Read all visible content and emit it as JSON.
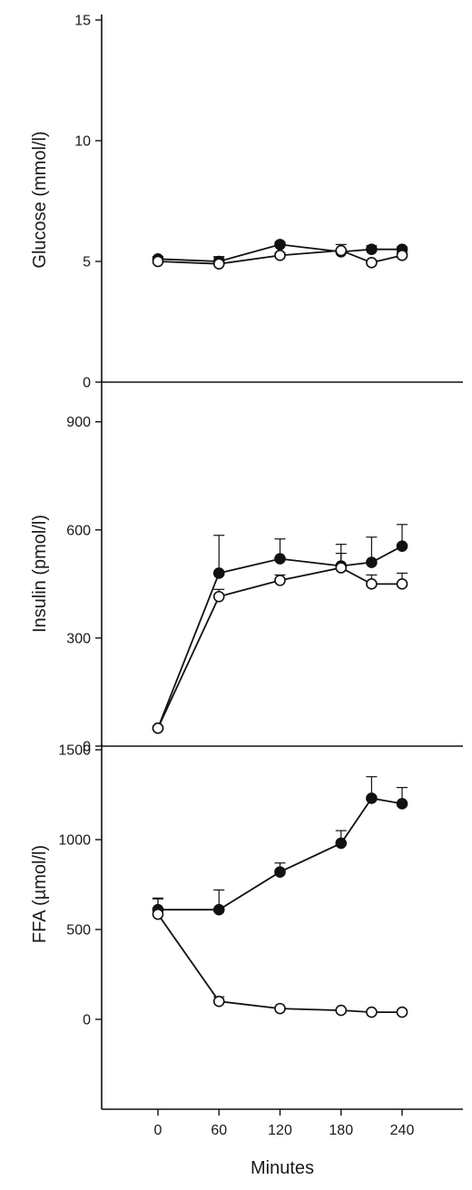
{
  "chart_data": [
    {
      "type": "line",
      "ylabel": "Glucose (mmol/l)",
      "ylim": [
        0,
        15
      ],
      "yticks": [
        0,
        5,
        10,
        15
      ],
      "x": [
        0,
        60,
        120,
        180,
        210,
        240
      ],
      "series": [
        {
          "marker": "filled",
          "values": [
            5.1,
            5.0,
            5.7,
            5.4,
            5.5,
            5.5
          ],
          "err": [
            0.1,
            0.15,
            0.1,
            0.1,
            0.15,
            0.1
          ]
        },
        {
          "marker": "open",
          "values": [
            5.0,
            4.9,
            5.25,
            5.45,
            4.95,
            5.25
          ],
          "err": [
            0.1,
            0.3,
            0.1,
            0.25,
            0.1,
            0.1
          ]
        }
      ]
    },
    {
      "type": "line",
      "ylabel": "Insulin (pmol/l)",
      "ylim": [
        0,
        1000
      ],
      "yticks": [
        0,
        300,
        600,
        900
      ],
      "x": [
        0,
        60,
        120,
        180,
        210,
        240
      ],
      "series": [
        {
          "marker": "filled",
          "values": [
            50,
            480,
            520,
            500,
            510,
            555
          ],
          "err": [
            5,
            105,
            55,
            60,
            70,
            60
          ]
        },
        {
          "marker": "open",
          "values": [
            50,
            415,
            460,
            495,
            450,
            450
          ],
          "err": [
            5,
            20,
            15,
            40,
            25,
            30
          ]
        }
      ]
    },
    {
      "type": "line",
      "ylabel": "FFA (µmol/l)",
      "xlabel": "Minutes",
      "ylim": [
        -500,
        1500
      ],
      "yticks": [
        0,
        500,
        1000,
        1500
      ],
      "x": [
        0,
        60,
        120,
        180,
        210,
        240
      ],
      "xticks": [
        0,
        60,
        120,
        180,
        240
      ],
      "series": [
        {
          "marker": "filled",
          "values": [
            610,
            610,
            820,
            980,
            1230,
            1200
          ],
          "err": [
            60,
            110,
            50,
            70,
            120,
            90
          ]
        },
        {
          "marker": "open",
          "values": [
            585,
            100,
            60,
            50,
            40,
            40
          ],
          "err": [
            90,
            25,
            10,
            10,
            10,
            10
          ]
        }
      ]
    }
  ]
}
